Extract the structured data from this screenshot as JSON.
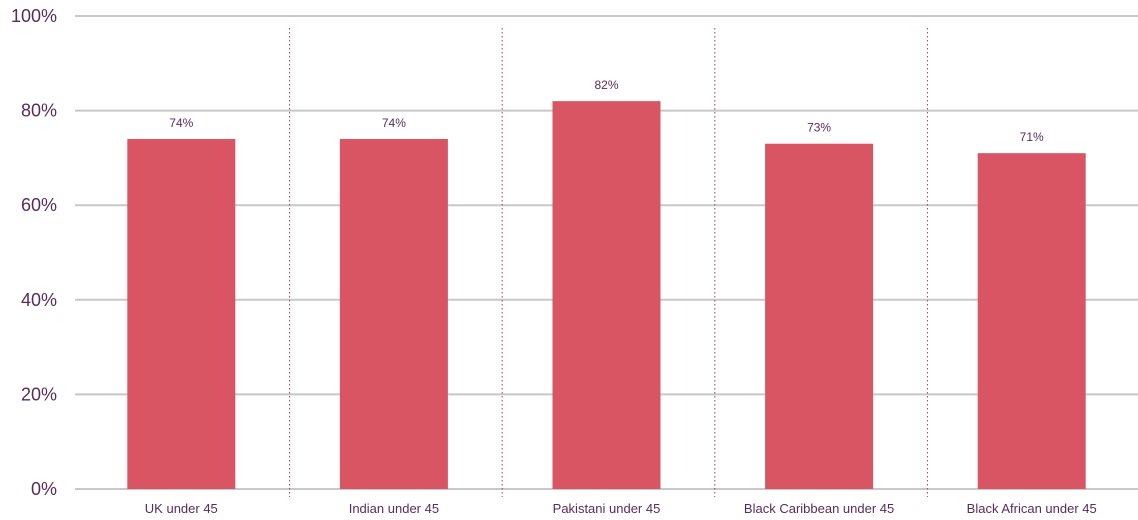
{
  "chart_data": {
    "type": "bar",
    "title": "",
    "xlabel": "",
    "ylabel": "",
    "categories": [
      "UK under 45",
      "Indian under 45",
      "Pakistani under 45",
      "Black Caribbean under 45",
      "Black African under 45"
    ],
    "values": [
      74,
      74,
      82,
      73,
      71
    ],
    "data_labels": [
      "74%",
      "74%",
      "82%",
      "73%",
      "71%"
    ],
    "ylim": [
      0,
      100
    ],
    "yticks": [
      0,
      20,
      40,
      60,
      80,
      100
    ],
    "ytick_labels": [
      "0%",
      "20%",
      "40%",
      "60%",
      "80%",
      "100%"
    ],
    "grid": true,
    "legend": "none",
    "colors": {
      "bar": "#d95563",
      "gridline": "#c8c8c8",
      "category_divider": "#b03a5a",
      "text": "#5a2a5e"
    }
  }
}
